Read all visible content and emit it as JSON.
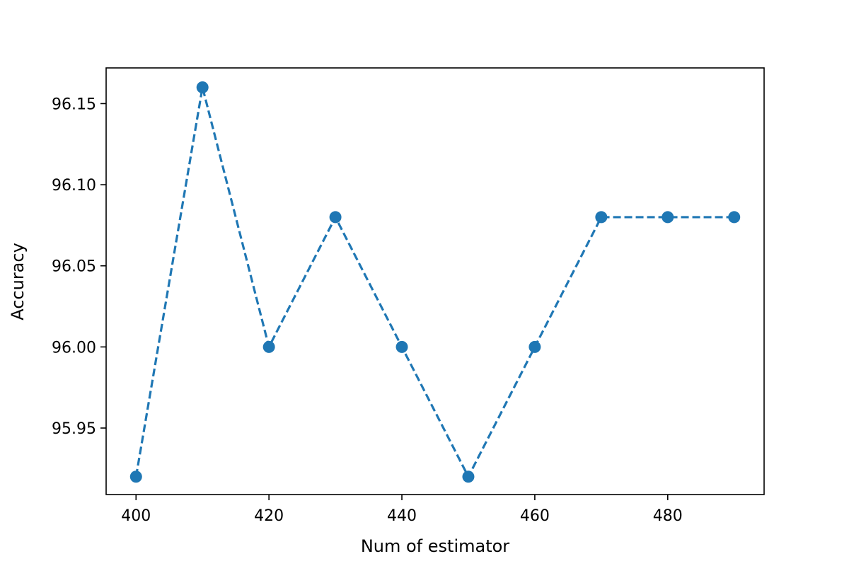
{
  "chart_data": {
    "type": "line",
    "title": "",
    "xlabel": "Num of estimator",
    "ylabel": "Accuracy",
    "x": [
      400,
      410,
      420,
      430,
      440,
      450,
      460,
      470,
      480,
      490
    ],
    "series": [
      {
        "values": [
          95.92,
          96.16,
          96.0,
          96.08,
          96.0,
          95.92,
          96.0,
          96.08,
          96.08,
          96.08
        ],
        "color": "#1f77b4",
        "linestyle": "dashed",
        "marker": "circle"
      }
    ],
    "xlim": [
      395.5,
      494.5
    ],
    "ylim": [
      95.909,
      96.172
    ],
    "xticks": [
      "400",
      "420",
      "440",
      "460",
      "480"
    ],
    "yticks": [
      "95.95",
      "96.00",
      "96.05",
      "96.10",
      "96.15"
    ],
    "grid": false
  }
}
